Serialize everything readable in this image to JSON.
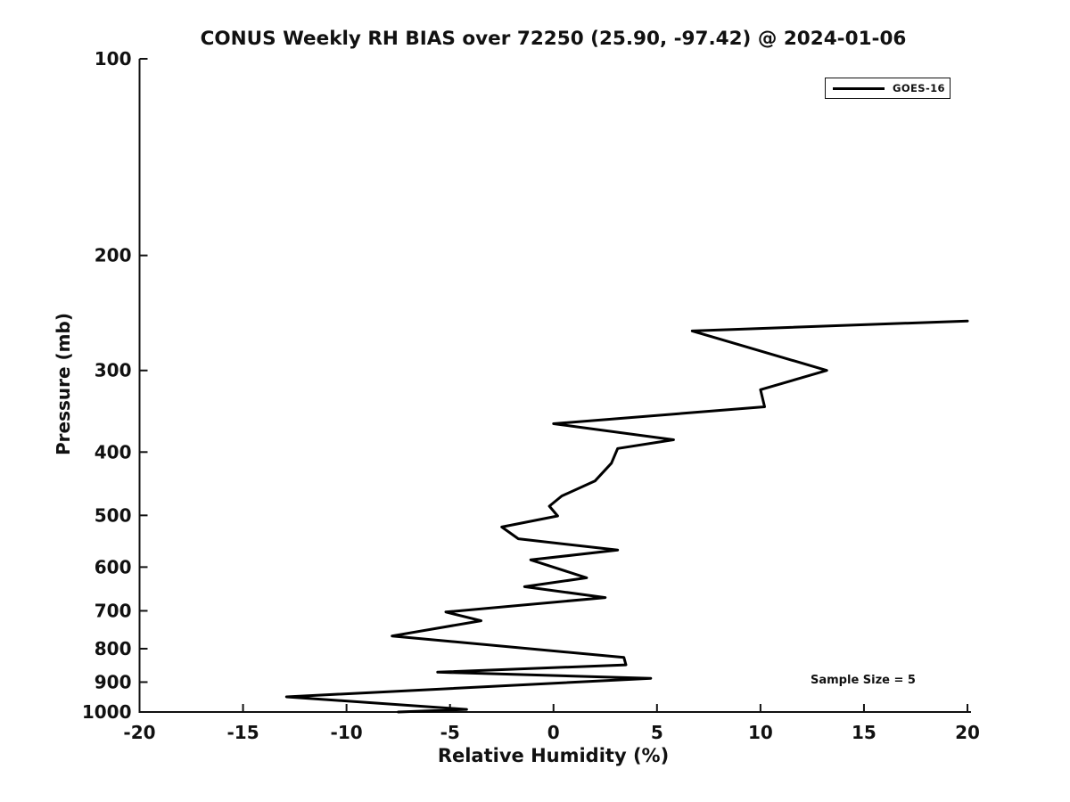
{
  "title": "CONUS Weekly RH BIAS over 72250 (25.90, -97.42) @ 2024-01-06",
  "legend": {
    "label": "GOES-16",
    "position": "upper right"
  },
  "annotation": {
    "sample_size_text": "Sample Size = 5"
  },
  "colors": {
    "line": "#000000",
    "text": "#111111",
    "axis": "#111111",
    "background": "#ffffff"
  },
  "chart_data": {
    "type": "line",
    "title": "CONUS Weekly RH BIAS over 72250 (25.90, -97.42) @ 2024-01-06",
    "xlabel": "Relative Humidity (%)",
    "ylabel": "Pressure (mb)",
    "xlim": [
      -20,
      20
    ],
    "ylim": [
      100,
      1000
    ],
    "yscale": "log",
    "y_axis_inverted": true,
    "grid": false,
    "legend_position": "upper right",
    "sample_size": 5,
    "x_ticks": [
      -20,
      -15,
      -10,
      -5,
      0,
      5,
      10,
      15,
      20
    ],
    "x_tick_labels": [
      "-20",
      "-15",
      "-10",
      "-5",
      "0",
      "5",
      "10",
      "15",
      "20"
    ],
    "y_ticks": [
      100,
      200,
      300,
      400,
      500,
      600,
      700,
      800,
      900,
      1000
    ],
    "y_tick_labels": [
      "100",
      "200",
      "300",
      "400",
      "500",
      "600",
      "700",
      "800",
      "900",
      "1000"
    ],
    "series": [
      {
        "name": "GOES-16",
        "color": "#000000",
        "line_width": 3,
        "points": [
          [
            20.0,
            252
          ],
          [
            6.7,
            261
          ],
          [
            13.2,
            300
          ],
          [
            10.0,
            321
          ],
          [
            10.2,
            341
          ],
          [
            0.0,
            362
          ],
          [
            5.8,
            383
          ],
          [
            3.1,
            395
          ],
          [
            2.8,
            416
          ],
          [
            2.0,
            443
          ],
          [
            0.4,
            467
          ],
          [
            -0.2,
            484
          ],
          [
            0.2,
            501
          ],
          [
            -2.5,
            521
          ],
          [
            -1.7,
            543
          ],
          [
            3.1,
            565
          ],
          [
            -1.1,
            585
          ],
          [
            1.6,
            623
          ],
          [
            -1.4,
            643
          ],
          [
            2.5,
            668
          ],
          [
            -5.2,
            703
          ],
          [
            -3.5,
            725
          ],
          [
            -7.8,
            765
          ],
          [
            3.4,
            825
          ],
          [
            3.5,
            847
          ],
          [
            -5.6,
            869
          ],
          [
            4.7,
            888
          ],
          [
            -12.9,
            948
          ],
          [
            -4.2,
            991
          ],
          [
            -7.5,
            1000
          ]
        ]
      }
    ]
  }
}
